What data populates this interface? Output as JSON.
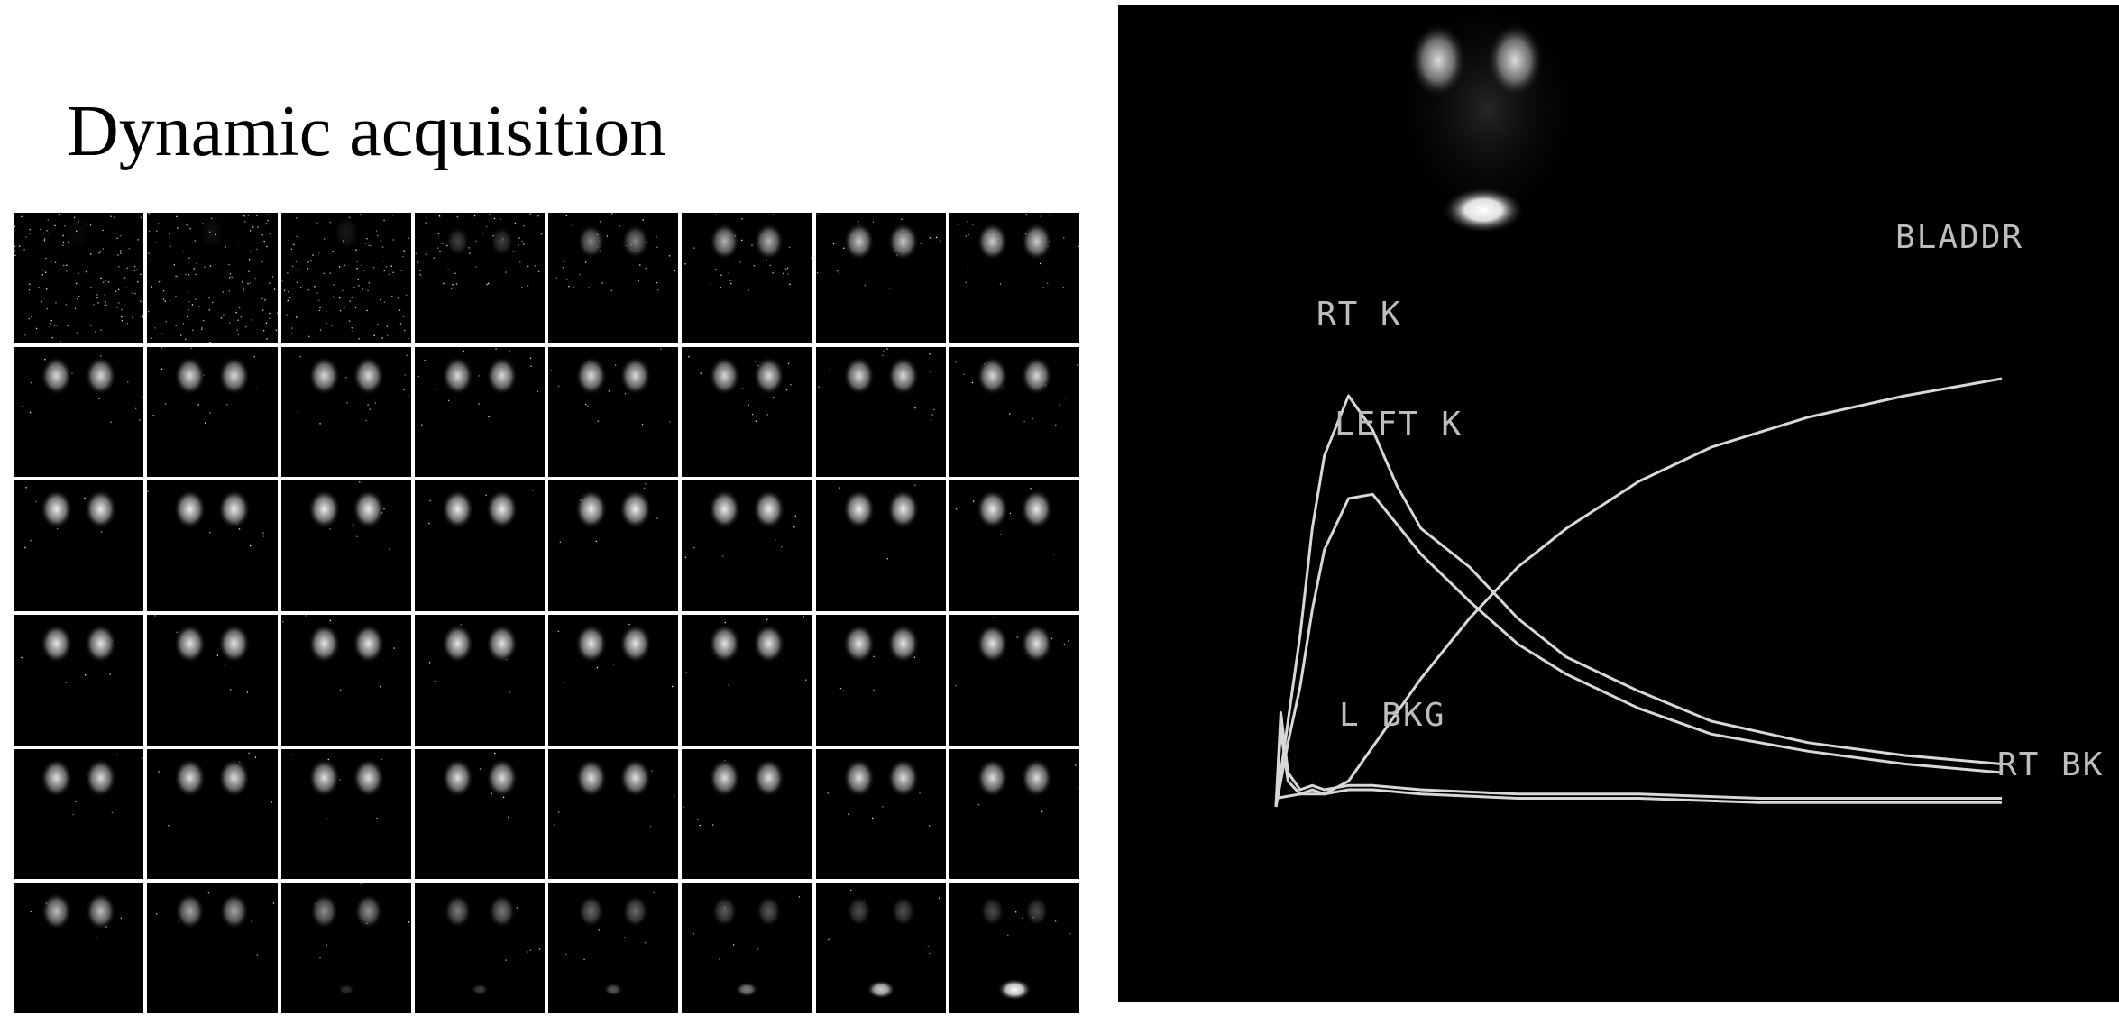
{
  "title": "Dynamic acquisition",
  "frame_grid": {
    "rows": 6,
    "cols": 8,
    "frames": [
      {
        "k": 0.05,
        "n": 0.9,
        "b": 0
      },
      {
        "k": 0.08,
        "n": 0.9,
        "b": 0
      },
      {
        "k": 0.12,
        "n": 0.85,
        "b": 0
      },
      {
        "k": 0.35,
        "n": 0.4,
        "b": 0
      },
      {
        "k": 0.6,
        "n": 0.25,
        "b": 0
      },
      {
        "k": 0.75,
        "n": 0.2,
        "b": 0
      },
      {
        "k": 0.8,
        "n": 0.15,
        "b": 0
      },
      {
        "k": 0.82,
        "n": 0.15,
        "b": 0
      },
      {
        "k": 0.85,
        "n": 0.1,
        "b": 0
      },
      {
        "k": 0.85,
        "n": 0.1,
        "b": 0
      },
      {
        "k": 0.85,
        "n": 0.1,
        "b": 0
      },
      {
        "k": 0.85,
        "n": 0.1,
        "b": 0
      },
      {
        "k": 0.85,
        "n": 0.1,
        "b": 0
      },
      {
        "k": 0.85,
        "n": 0.1,
        "b": 0
      },
      {
        "k": 0.85,
        "n": 0.1,
        "b": 0
      },
      {
        "k": 0.85,
        "n": 0.1,
        "b": 0
      },
      {
        "k": 0.9,
        "n": 0.05,
        "b": 0
      },
      {
        "k": 0.9,
        "n": 0.05,
        "b": 0
      },
      {
        "k": 0.9,
        "n": 0.05,
        "b": 0
      },
      {
        "k": 0.9,
        "n": 0.05,
        "b": 0
      },
      {
        "k": 0.9,
        "n": 0.05,
        "b": 0
      },
      {
        "k": 0.9,
        "n": 0.05,
        "b": 0
      },
      {
        "k": 0.9,
        "n": 0.05,
        "b": 0
      },
      {
        "k": 0.9,
        "n": 0.05,
        "b": 0
      },
      {
        "k": 0.88,
        "n": 0.04,
        "b": 0
      },
      {
        "k": 0.88,
        "n": 0.04,
        "b": 0
      },
      {
        "k": 0.88,
        "n": 0.04,
        "b": 0
      },
      {
        "k": 0.88,
        "n": 0.04,
        "b": 0
      },
      {
        "k": 0.88,
        "n": 0.04,
        "b": 0
      },
      {
        "k": 0.88,
        "n": 0.04,
        "b": 0
      },
      {
        "k": 0.88,
        "n": 0.04,
        "b": 0
      },
      {
        "k": 0.88,
        "n": 0.04,
        "b": 0
      },
      {
        "k": 0.86,
        "n": 0.04,
        "b": 0
      },
      {
        "k": 0.86,
        "n": 0.04,
        "b": 0
      },
      {
        "k": 0.86,
        "n": 0.04,
        "b": 0
      },
      {
        "k": 0.86,
        "n": 0.04,
        "b": 0
      },
      {
        "k": 0.86,
        "n": 0.04,
        "b": 0
      },
      {
        "k": 0.86,
        "n": 0.04,
        "b": 0
      },
      {
        "k": 0.86,
        "n": 0.04,
        "b": 0
      },
      {
        "k": 0.86,
        "n": 0.04,
        "b": 0
      },
      {
        "k": 0.78,
        "n": 0.04,
        "b": 0
      },
      {
        "k": 0.72,
        "n": 0.04,
        "b": 0
      },
      {
        "k": 0.65,
        "n": 0.04,
        "b": 0.05
      },
      {
        "k": 0.58,
        "n": 0.04,
        "b": 0.1
      },
      {
        "k": 0.52,
        "n": 0.04,
        "b": 0.2
      },
      {
        "k": 0.46,
        "n": 0.04,
        "b": 0.35
      },
      {
        "k": 0.42,
        "n": 0.04,
        "b": 0.65
      },
      {
        "k": 0.4,
        "n": 0.04,
        "b": 0.9
      }
    ]
  },
  "chart_data": {
    "type": "line",
    "title": "",
    "xlabel": "",
    "ylabel": "",
    "xlim": [
      0,
      30
    ],
    "ylim": [
      0,
      100
    ],
    "grid": false,
    "legend": "inline labels",
    "series": [
      {
        "name": "RT K",
        "x": [
          0,
          0.5,
          1,
          1.5,
          2,
          3,
          4,
          5,
          6,
          8,
          10,
          12,
          15,
          18,
          22,
          26,
          30
        ],
        "y": [
          0,
          20,
          40,
          65,
          82,
          96,
          88,
          75,
          65,
          56,
          44,
          35,
          27,
          20,
          15,
          12,
          10
        ]
      },
      {
        "name": "LEFT K",
        "x": [
          0,
          0.5,
          1,
          1.5,
          2,
          3,
          4,
          5,
          6,
          8,
          10,
          12,
          15,
          18,
          22,
          26,
          30
        ],
        "y": [
          0,
          15,
          28,
          46,
          60,
          72,
          73,
          66,
          59,
          48,
          38,
          31,
          23,
          17,
          13,
          10,
          8
        ]
      },
      {
        "name": "BLADDR",
        "x": [
          0,
          1,
          2,
          3,
          4,
          6,
          8,
          10,
          12,
          15,
          18,
          22,
          26,
          30
        ],
        "y": [
          2,
          3,
          3,
          6,
          14,
          30,
          44,
          56,
          65,
          76,
          84,
          91,
          96,
          100
        ]
      },
      {
        "name": "L BKG",
        "x": [
          0,
          0.2,
          0.5,
          1,
          1.5,
          2,
          3,
          4,
          6,
          10,
          15,
          20,
          25,
          30
        ],
        "y": [
          0,
          22,
          8,
          4,
          5,
          4,
          5,
          5,
          4,
          3,
          3,
          2,
          2,
          2
        ]
      },
      {
        "name": "RT BK",
        "x": [
          0,
          0.2,
          0.5,
          1,
          1.5,
          2,
          3,
          4,
          6,
          10,
          15,
          20,
          25,
          30
        ],
        "y": [
          0,
          18,
          6,
          3,
          4,
          3,
          4,
          4,
          3,
          2,
          2,
          1,
          1,
          1
        ]
      }
    ]
  },
  "colors": {
    "background": "#ffffff",
    "panel": "#000000",
    "curve": "#d8d8d8",
    "label": "#bdbdbd"
  }
}
